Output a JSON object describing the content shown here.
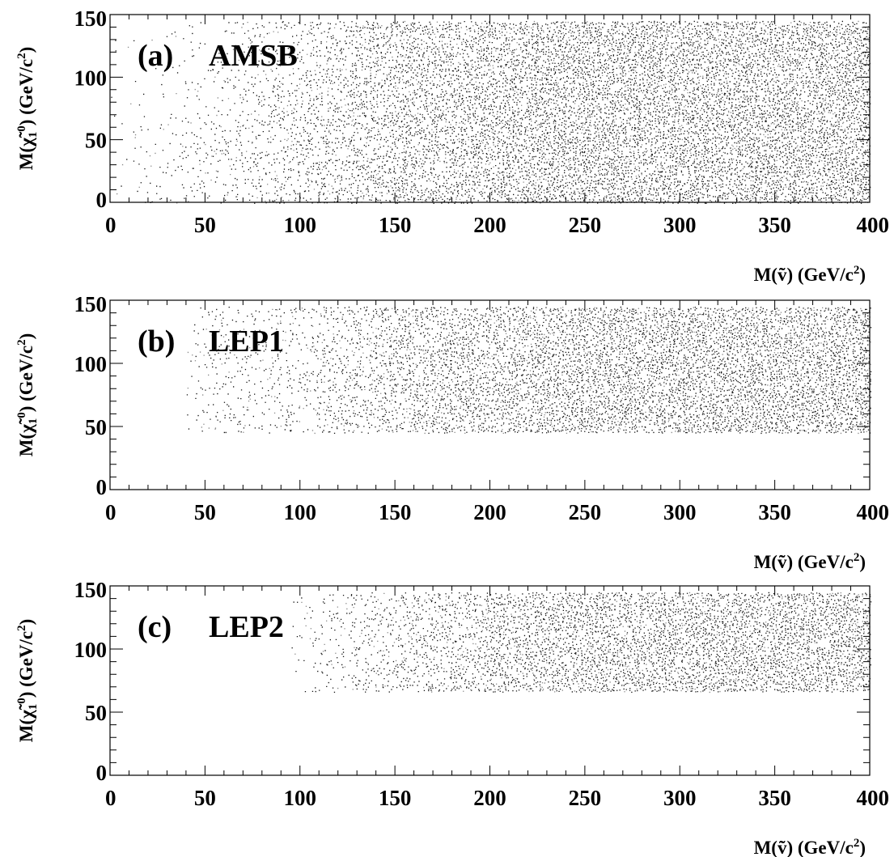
{
  "chart_data": [
    {
      "type": "scatter",
      "panel_label": "(a)",
      "title": "AMSB",
      "xlabel": {
        "main": "M(ṽ) (GeV/c",
        "sup": "2",
        "tail": ")"
      },
      "ylabel": {
        "pre": "M(χ̃",
        "sub": "1",
        "sup": "0",
        "mid": ") (GeV/c",
        "sup2": "2",
        "tail": ")"
      },
      "xlim": [
        0,
        400
      ],
      "ylim": [
        0,
        150
      ],
      "xticks": [
        "0",
        "50",
        "100",
        "150",
        "200",
        "250",
        "300",
        "350",
        "400"
      ],
      "yticks": [
        "0",
        "50",
        "100",
        "150"
      ],
      "region": {
        "y_min": 0,
        "y_max": 145,
        "boundary_x": [
          0,
          40,
          80,
          120,
          160,
          200,
          240,
          400
        ],
        "boundary_ymin": [
          0,
          0,
          0,
          0,
          0,
          0,
          0,
          0
        ],
        "density_x": [
          0,
          40,
          100,
          150,
          200,
          250,
          400
        ],
        "density": [
          0.03,
          0.12,
          0.3,
          0.5,
          0.6,
          0.68,
          0.7
        ]
      },
      "grid": false
    },
    {
      "type": "scatter",
      "panel_label": "(b)",
      "title": "LEP1",
      "xlabel": {
        "main": "M(ṽ) (GeV/c",
        "sup": "2",
        "tail": ")"
      },
      "ylabel": {
        "pre": "M(χ̃",
        "sub": "1",
        "sup": "0",
        "mid": ") (GeV/c",
        "sup2": "2",
        "tail": ")"
      },
      "xlim": [
        0,
        400
      ],
      "ylim": [
        0,
        150
      ],
      "xticks": [
        "0",
        "50",
        "100",
        "150",
        "200",
        "250",
        "300",
        "350",
        "400"
      ],
      "yticks": [
        "0",
        "50",
        "100",
        "150"
      ],
      "region": {
        "y_min": 45,
        "y_max": 145,
        "x_min": 40,
        "density_x": [
          40,
          100,
          150,
          200,
          250,
          400
        ],
        "density": [
          0.1,
          0.22,
          0.45,
          0.55,
          0.65,
          0.68
        ]
      },
      "grid": false
    },
    {
      "type": "scatter",
      "panel_label": "(c)",
      "title": "LEP2",
      "xlabel": {
        "main": "M(ṽ) (GeV/c",
        "sup": "2",
        "tail": ")"
      },
      "ylabel": {
        "pre": "M(χ̃",
        "sub": "1",
        "sup": "0",
        "mid": ") (GeV/c",
        "sup2": "2",
        "tail": ")"
      },
      "xlim": [
        0,
        400
      ],
      "ylim": [
        0,
        150
      ],
      "xticks": [
        "0",
        "50",
        "100",
        "150",
        "200",
        "250",
        "300",
        "350",
        "400"
      ],
      "yticks": [
        "0",
        "50",
        "100",
        "150"
      ],
      "region": {
        "y_min": 68,
        "y_max": 145,
        "x_min": 95,
        "density_x": [
          95,
          150,
          200,
          250,
          400
        ],
        "density": [
          0.05,
          0.3,
          0.5,
          0.62,
          0.66
        ]
      },
      "grid": false
    }
  ]
}
